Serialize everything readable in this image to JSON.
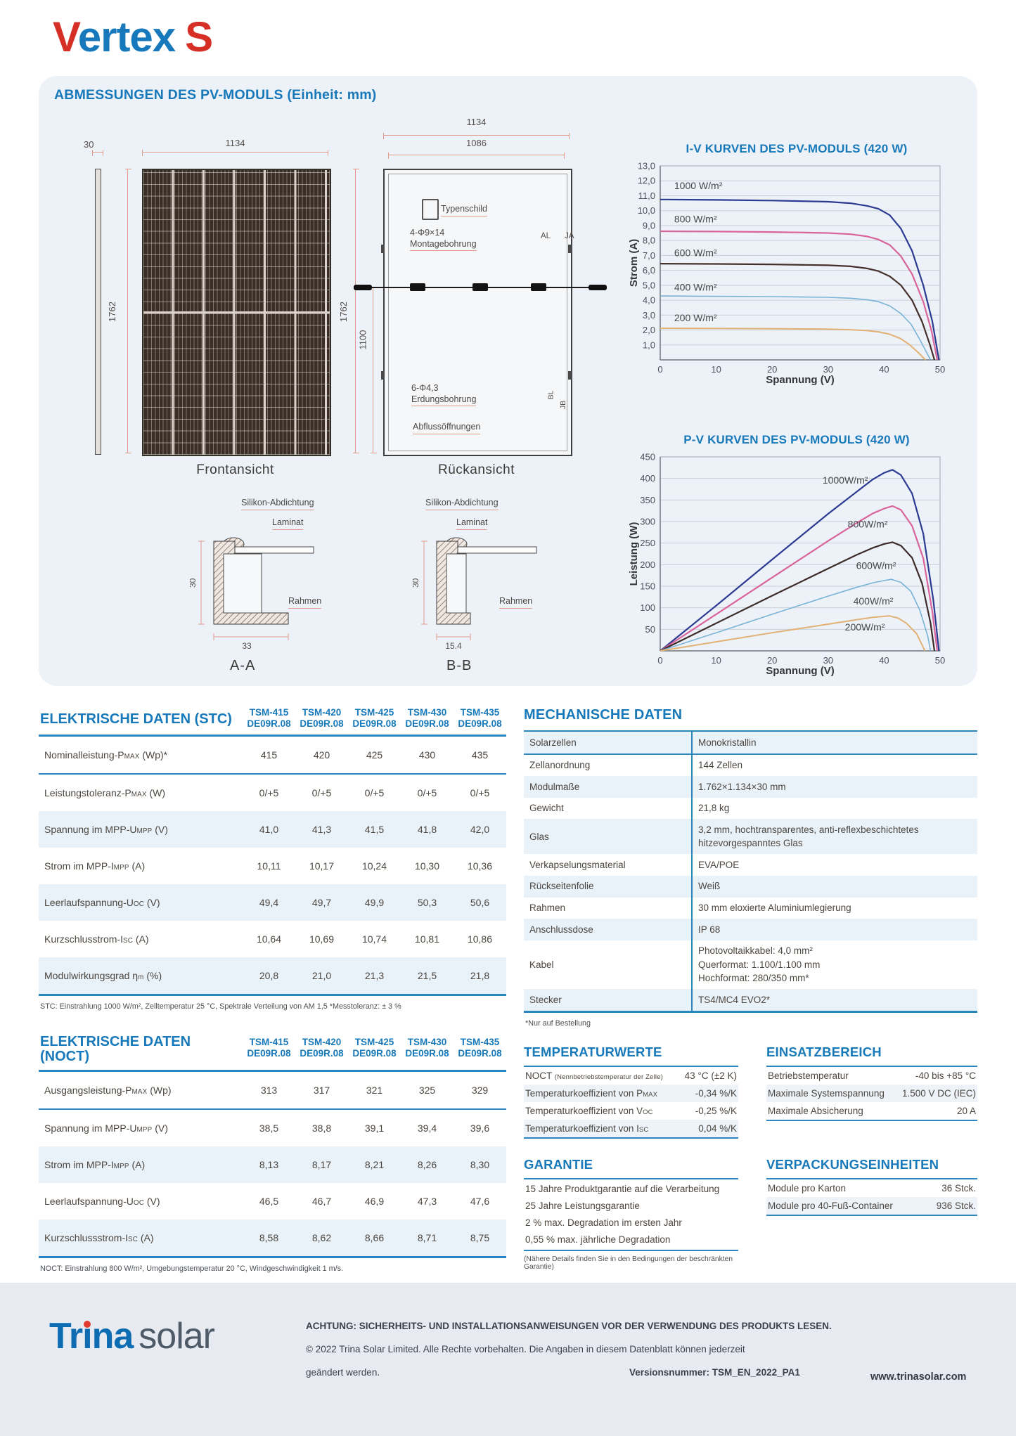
{
  "logo": {
    "part1": "V",
    "part2": "ertex",
    "part3": "S"
  },
  "panel": {
    "title": "ABMESSUNGEN DES PV-MODULS (Einheit: mm)",
    "front": {
      "caption": "Frontansicht",
      "dim_thickness": "30",
      "dim_width": "1134",
      "dim_height": "1762"
    },
    "rear": {
      "caption": "Rückansicht",
      "dim_width": "1134",
      "dim_width_inner": "1086",
      "dim_height": "1762",
      "dim_height_inner": "1100",
      "nameplate": "Typenschild",
      "mounting": "4-Φ9×14\nMontagebohrung",
      "grounding": "6-Φ4,3\nErdungsbohrung",
      "drainage": "Abflussöffnungen",
      "mark_al": "AL",
      "mark_ja": "JA",
      "mark_bl": "BL",
      "mark_jb": "JB"
    },
    "section_a": {
      "caption": "A-A",
      "silicone": "Silikon-Abdichtung",
      "laminate": "Laminat",
      "frame": "Rahmen",
      "dim_h": "30",
      "dim_w": "33"
    },
    "section_b": {
      "caption": "B-B",
      "silicone": "Silikon-Abdichtung",
      "laminate": "Laminat",
      "frame": "Rahmen",
      "dim_h": "30",
      "dim_w": "15.4"
    }
  },
  "chart_data": [
    {
      "type": "line",
      "title": "I-V KURVEN DES PV-MODULS (420 W)",
      "xlabel": "Spannung (V)",
      "ylabel": "Strom (A)",
      "xlim": [
        0,
        50
      ],
      "ylim": [
        0,
        13
      ],
      "grid": true,
      "legend": "inline-labels",
      "xticks": [
        0,
        10,
        20,
        30,
        40,
        50
      ],
      "yticks": [
        1,
        2,
        3,
        4,
        5,
        6,
        7,
        8,
        9,
        10,
        11,
        12,
        13
      ],
      "ytick_labels": [
        "1,0",
        "2,0",
        "3,0",
        "4,0",
        "5,0",
        "6,0",
        "7,0",
        "8,0",
        "9,0",
        "10,0",
        "11,0",
        "12,0",
        "13,0"
      ],
      "series": [
        {
          "name": "1000 W/m²",
          "color": "#2c3a92",
          "width": 2.2,
          "label_pos": [
            2.5,
            11.45
          ],
          "points": [
            [
              0,
              10.75
            ],
            [
              10,
              10.72
            ],
            [
              20,
              10.68
            ],
            [
              30,
              10.6
            ],
            [
              34,
              10.5
            ],
            [
              37,
              10.32
            ],
            [
              39,
              10.12
            ],
            [
              41,
              9.7
            ],
            [
              43,
              8.8
            ],
            [
              45,
              7.3
            ],
            [
              47,
              5.0
            ],
            [
              48.6,
              2.6
            ],
            [
              49.8,
              0
            ]
          ]
        },
        {
          "name": "800 W/m²",
          "color": "#d9649c",
          "width": 2.2,
          "label_pos": [
            2.5,
            9.2
          ],
          "points": [
            [
              0,
              8.62
            ],
            [
              10,
              8.6
            ],
            [
              20,
              8.57
            ],
            [
              30,
              8.5
            ],
            [
              34,
              8.42
            ],
            [
              37,
              8.27
            ],
            [
              39,
              8.07
            ],
            [
              41,
              7.7
            ],
            [
              43,
              6.95
            ],
            [
              45,
              5.75
            ],
            [
              47,
              3.9
            ],
            [
              48.5,
              1.9
            ],
            [
              49.5,
              0
            ]
          ]
        },
        {
          "name": "600 W/m²",
          "color": "#45302c",
          "width": 2.2,
          "label_pos": [
            2.5,
            6.95
          ],
          "points": [
            [
              0,
              6.45
            ],
            [
              10,
              6.43
            ],
            [
              20,
              6.4
            ],
            [
              30,
              6.34
            ],
            [
              34,
              6.27
            ],
            [
              37,
              6.13
            ],
            [
              39,
              5.95
            ],
            [
              41,
              5.6
            ],
            [
              43,
              5.0
            ],
            [
              45,
              4.0
            ],
            [
              46.8,
              2.55
            ],
            [
              48.2,
              1.0
            ],
            [
              49,
              0
            ]
          ]
        },
        {
          "name": "400 W/m²",
          "color": "#79b3d6",
          "width": 1.6,
          "label_pos": [
            2.5,
            4.65
          ],
          "points": [
            [
              0,
              4.28
            ],
            [
              10,
              4.26
            ],
            [
              20,
              4.24
            ],
            [
              30,
              4.19
            ],
            [
              34,
              4.13
            ],
            [
              37,
              4.03
            ],
            [
              39,
              3.9
            ],
            [
              41,
              3.62
            ],
            [
              43,
              3.1
            ],
            [
              44.8,
              2.4
            ],
            [
              46.4,
              1.35
            ],
            [
              47.8,
              0.35
            ],
            [
              48.3,
              0
            ]
          ]
        },
        {
          "name": "200 W/m²",
          "color": "#e2b173",
          "width": 2,
          "label_pos": [
            2.5,
            2.6
          ],
          "points": [
            [
              0,
              2.12
            ],
            [
              10,
              2.11
            ],
            [
              20,
              2.09
            ],
            [
              30,
              2.06
            ],
            [
              34,
              2.02
            ],
            [
              37,
              1.96
            ],
            [
              39,
              1.88
            ],
            [
              41,
              1.72
            ],
            [
              43,
              1.42
            ],
            [
              44.6,
              1.0
            ],
            [
              46.2,
              0.45
            ],
            [
              47.4,
              0
            ]
          ]
        }
      ]
    },
    {
      "type": "line",
      "title": "P-V KURVEN DES PV-MODULS (420 W)",
      "xlabel": "Spannung (V)",
      "ylabel": "Leistung (W)",
      "xlim": [
        0,
        50
      ],
      "ylim": [
        0,
        450
      ],
      "grid": true,
      "legend": "inline-labels",
      "xticks": [
        0,
        10,
        20,
        30,
        40,
        50
      ],
      "yticks": [
        50,
        100,
        150,
        200,
        250,
        300,
        350,
        400,
        450
      ],
      "ytick_labels": [
        "50",
        "100",
        "150",
        "200",
        "250",
        "300",
        "350",
        "400",
        "450"
      ],
      "series": [
        {
          "name": "1000W/m²",
          "color": "#2c3a92",
          "width": 2.2,
          "label_pos": [
            29,
            388
          ],
          "points": [
            [
              0,
              0
            ],
            [
              10,
              105
            ],
            [
              20,
              212
            ],
            [
              30,
              318
            ],
            [
              35,
              368
            ],
            [
              38,
              398
            ],
            [
              40,
              413
            ],
            [
              41.5,
              420
            ],
            [
              43,
              408
            ],
            [
              45,
              365
            ],
            [
              47,
              272
            ],
            [
              48.8,
              118
            ],
            [
              49.8,
              0
            ]
          ]
        },
        {
          "name": "800W/m²",
          "color": "#d9649c",
          "width": 2.2,
          "label_pos": [
            33.5,
            286
          ],
          "points": [
            [
              0,
              0
            ],
            [
              10,
              85
            ],
            [
              20,
              170
            ],
            [
              30,
              255
            ],
            [
              35,
              296
            ],
            [
              38,
              319
            ],
            [
              40,
              330
            ],
            [
              41.5,
              336
            ],
            [
              43,
              327
            ],
            [
              45,
              290
            ],
            [
              47,
              215
            ],
            [
              48.6,
              92
            ],
            [
              49.5,
              0
            ]
          ]
        },
        {
          "name": "600W/m²",
          "color": "#3c2b28",
          "width": 2.2,
          "label_pos": [
            35,
            190
          ],
          "points": [
            [
              0,
              0
            ],
            [
              10,
              64
            ],
            [
              20,
              128
            ],
            [
              30,
              191
            ],
            [
              35,
              222
            ],
            [
              38,
              239
            ],
            [
              40,
              248
            ],
            [
              41.5,
              252
            ],
            [
              43,
              244
            ],
            [
              45,
              216
            ],
            [
              46.8,
              156
            ],
            [
              48.3,
              64
            ],
            [
              49,
              0
            ]
          ]
        },
        {
          "name": "400W/m²",
          "color": "#79b3d6",
          "width": 1.6,
          "label_pos": [
            34.5,
            108
          ],
          "points": [
            [
              0,
              0
            ],
            [
              10,
              42
            ],
            [
              20,
              85
            ],
            [
              30,
              127
            ],
            [
              35,
              147
            ],
            [
              38,
              158
            ],
            [
              40,
              163
            ],
            [
              41.3,
              166
            ],
            [
              43,
              159
            ],
            [
              44.8,
              138
            ],
            [
              46.4,
              94
            ],
            [
              47.8,
              34
            ],
            [
              48.3,
              0
            ]
          ]
        },
        {
          "name": "200W/m²",
          "color": "#e2b173",
          "width": 2,
          "label_pos": [
            33,
            47
          ],
          "points": [
            [
              0,
              0
            ],
            [
              10,
              21
            ],
            [
              20,
              42
            ],
            [
              30,
              62
            ],
            [
              35,
              72
            ],
            [
              38,
              78
            ],
            [
              40,
              80
            ],
            [
              41,
              81
            ],
            [
              42.5,
              76
            ],
            [
              44,
              64
            ],
            [
              45.8,
              40
            ],
            [
              47.3,
              0
            ]
          ]
        }
      ]
    }
  ],
  "stc": {
    "title": "ELEKTRISCHE DATEN (STC)",
    "columns": [
      {
        "model": "TSM-415",
        "code": "DE09R.08"
      },
      {
        "model": "TSM-420",
        "code": "DE09R.08"
      },
      {
        "model": "TSM-425",
        "code": "DE09R.08"
      },
      {
        "model": "TSM-430",
        "code": "DE09R.08"
      },
      {
        "model": "TSM-435",
        "code": "DE09R.08"
      }
    ],
    "rows": [
      {
        "label": "Nominalleistung-P{MAX} (Wp)*",
        "values": [
          "415",
          "420",
          "425",
          "430",
          "435"
        ]
      },
      {
        "label": "Leistungstoleranz-P{MAX} (W)",
        "values": [
          "0/+5",
          "0/+5",
          "0/+5",
          "0/+5",
          "0/+5"
        ]
      },
      {
        "label": "Spannung im MPP-U{MPP} (V)",
        "values": [
          "41,0",
          "41,3",
          "41,5",
          "41,8",
          "42,0"
        ]
      },
      {
        "label": "Strom im MPP-I{MPP} (A)",
        "values": [
          "10,11",
          "10,17",
          "10,24",
          "10,30",
          "10,36"
        ]
      },
      {
        "label": "Leerlaufspannung-U{OC} (V)",
        "values": [
          "49,4",
          "49,7",
          "49,9",
          "50,3",
          "50,6"
        ]
      },
      {
        "label": "Kurzschlusstrom-I{SC} (A)",
        "values": [
          "10,64",
          "10,69",
          "10,74",
          "10,81",
          "10,86"
        ]
      },
      {
        "label": "Modulwirkungsgrad η{m} (%)",
        "values": [
          "20,8",
          "21,0",
          "21,3",
          "21,5",
          "21,8"
        ]
      }
    ],
    "footnote": "STC: Einstrahlung 1000 W/m², Zelltemperatur 25 °C, Spektrale Verteilung von AM 1,5    *Messtoleranz: ± 3 %"
  },
  "noct": {
    "title": "ELEKTRISCHE DATEN (NOCT)",
    "columns": [
      {
        "model": "TSM-415",
        "code": "DE09R.08"
      },
      {
        "model": "TSM-420",
        "code": "DE09R.08"
      },
      {
        "model": "TSM-425",
        "code": "DE09R.08"
      },
      {
        "model": "TSM-430",
        "code": "DE09R.08"
      },
      {
        "model": "TSM-435",
        "code": "DE09R.08"
      }
    ],
    "rows": [
      {
        "label": "Ausgangsleistung-P{MAX} (Wp)",
        "values": [
          "313",
          "317",
          "321",
          "325",
          "329"
        ]
      },
      {
        "label": "Spannung im MPP-U{MPP} (V)",
        "values": [
          "38,5",
          "38,8",
          "39,1",
          "39,4",
          "39,6"
        ]
      },
      {
        "label": "Strom im MPP-I{MPP} (A)",
        "values": [
          "8,13",
          "8,17",
          "8,21",
          "8,26",
          "8,30"
        ]
      },
      {
        "label": "Leerlaufspannung-U{OC} (V)",
        "values": [
          "46,5",
          "46,7",
          "46,9",
          "47,3",
          "47,6"
        ]
      },
      {
        "label": "Kurzschlussstrom-I{SC} (A)",
        "values": [
          "8,58",
          "8,62",
          "8,66",
          "8,71",
          "8,75"
        ]
      }
    ],
    "footnote": "NOCT: Einstrahlung 800 W/m², Umgebungstemperatur 20 °C, Windgeschwindigkeit 1 m/s."
  },
  "mech": {
    "title": "MECHANISCHE DATEN",
    "rows": [
      {
        "label": "Solarzellen",
        "value": [
          "Monokristallin"
        ]
      },
      {
        "label": "Zellanordnung",
        "value": [
          "144 Zellen"
        ]
      },
      {
        "label": "Modulmaße",
        "value": [
          "1.762×1.134×30 mm"
        ]
      },
      {
        "label": "Gewicht",
        "value": [
          "21,8 kg"
        ]
      },
      {
        "label": "Glas",
        "value": [
          "3,2 mm, hochtransparentes, anti-reflexbeschichtetes hitzevorgespanntes Glas"
        ]
      },
      {
        "label": "Verkapselungsmaterial",
        "value": [
          "EVA/POE"
        ]
      },
      {
        "label": "Rückseitenfolie",
        "value": [
          "Weiß"
        ]
      },
      {
        "label": "Rahmen",
        "value": [
          "30 mm eloxierte Aluminiumlegierung"
        ]
      },
      {
        "label": "Anschlussdose",
        "value": [
          "IP 68"
        ]
      },
      {
        "label": "Kabel",
        "value": [
          "Photovoltaikkabel: 4,0 mm²",
          "Querformat: 1.100/1.100 mm",
          "Hochformat: 280/350 mm*"
        ]
      },
      {
        "label": "Stecker",
        "value": [
          "TS4/MC4 EVO2*"
        ]
      }
    ],
    "footnote": "*Nur auf Bestellung"
  },
  "temp": {
    "title": "TEMPERATURWERTE",
    "rows": [
      {
        "label": "NOCT {(Nennbetriebstemperatur der Zelle)}",
        "value": "43 °C (±2 K)"
      },
      {
        "label": "Temperaturkoeffizient von P{MAX}",
        "value": "-0,34 %/K"
      },
      {
        "label": "Temperaturkoeffizient von V{OC}",
        "value": "-0,25 %/K"
      },
      {
        "label": "Temperaturkoeffizient von I{SC}",
        "value": "0,04 %/K"
      }
    ]
  },
  "einsatz": {
    "title": "EINSATZBEREICH",
    "rows": [
      {
        "label": "Betriebstemperatur",
        "value": "-40 bis +85 °C"
      },
      {
        "label": "Maximale Systemspannung",
        "value": "1.500 V DC (IEC)"
      },
      {
        "label": "Maximale Absicherung",
        "value": "20 A"
      }
    ]
  },
  "garantie": {
    "title": "GARANTIE",
    "items": [
      "15 Jahre Produktgarantie auf die Verarbeitung",
      "25 Jahre Leistungsgarantie",
      "2 % max. Degradation im ersten Jahr",
      "0,55 % max. jährliche Degradation"
    ],
    "note": "(Nähere Details finden Sie in den Bedingungen der beschränkten Garantie)"
  },
  "verpackung": {
    "title": "VERPACKUNGSEINHEITEN",
    "rows": [
      {
        "label": "Module pro Karton",
        "value": "36 Stck."
      },
      {
        "label": "Module pro 40-Fuß-Container",
        "value": "936 Stck."
      }
    ]
  },
  "footer": {
    "brand": {
      "t1": "Tr",
      "i": "ı",
      "t2": "na",
      "t3": "solar"
    },
    "warning": "ACHTUNG: SICHERHEITS- UND INSTALLATIONSANWEISUNGEN VOR DER VERWENDUNG DES PRODUKTS LESEN.",
    "copyright": "© 2022 Trina Solar Limited. Alle Rechte vorbehalten. Die Angaben in diesem Datenblatt können jederzeit",
    "copyright2": "geändert werden.",
    "version": "Versionsnummer: TSM_EN_2022_PA1",
    "website": "www.trinasolar.com"
  }
}
